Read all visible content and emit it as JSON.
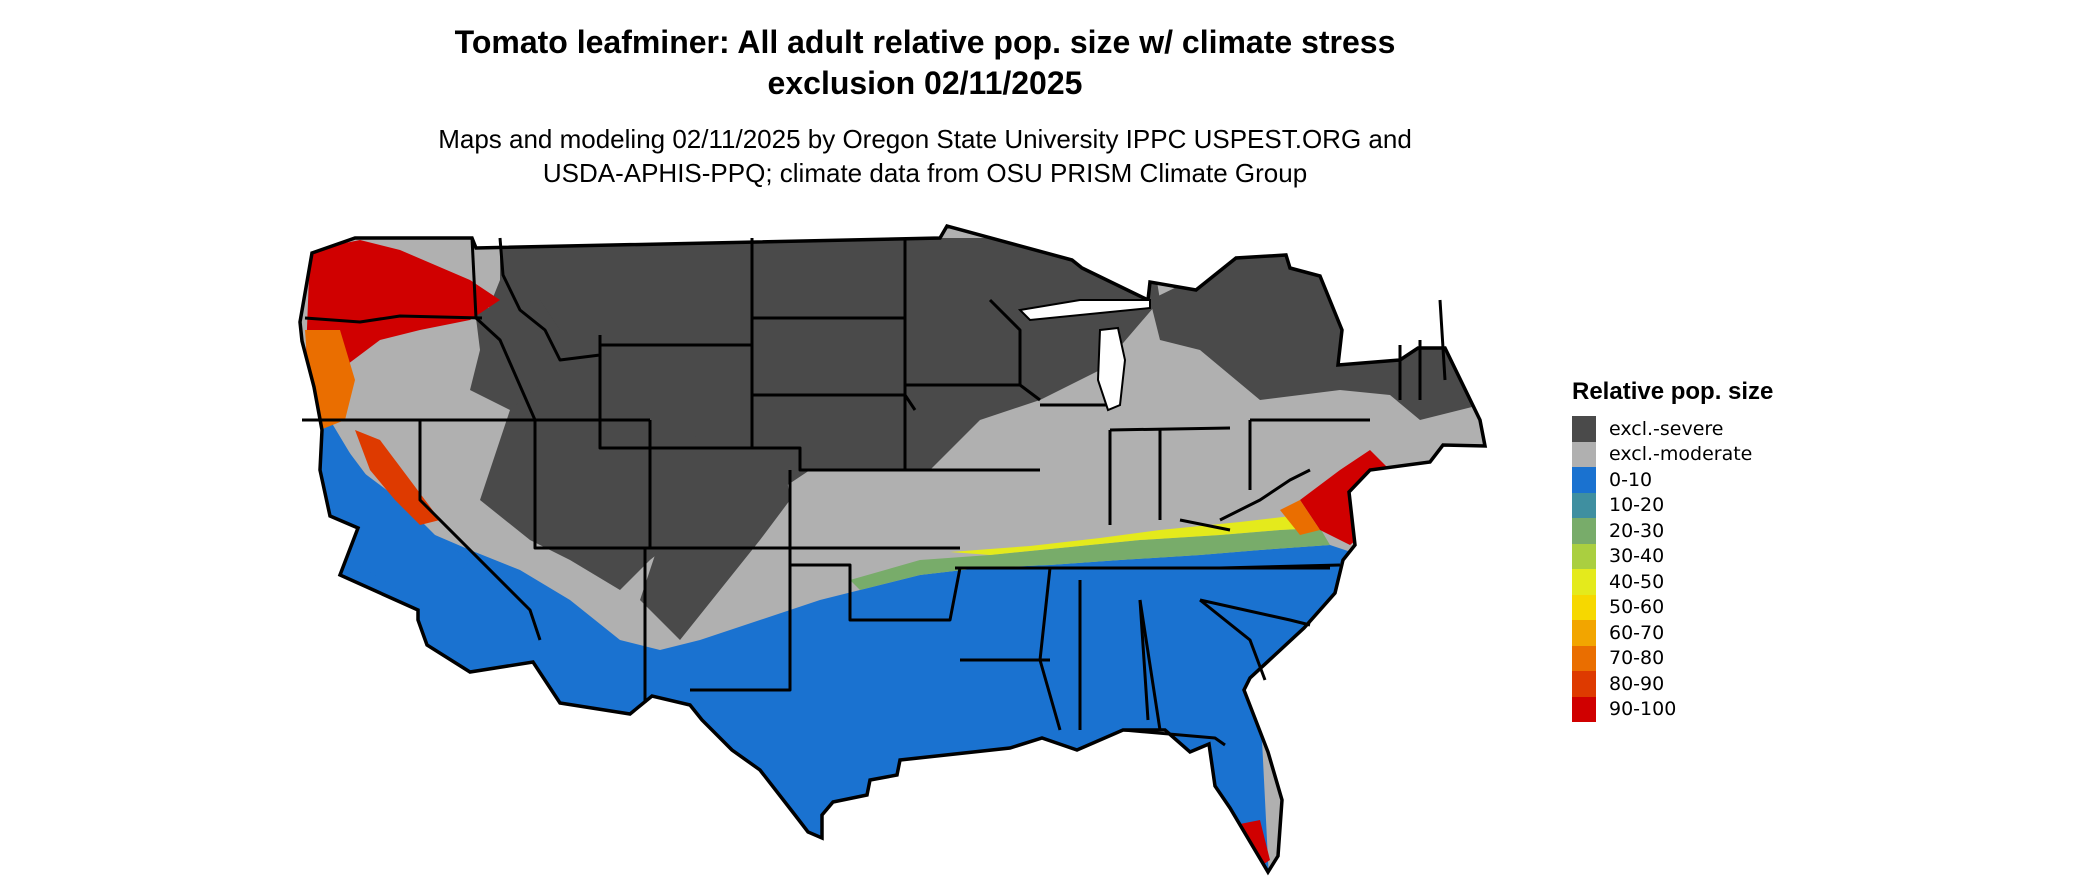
{
  "title_line1": "Tomato leafminer: All adult relative pop. size w/ climate stress",
  "title_line2": "exclusion 02/11/2025",
  "subtitle_line1": "Maps and modeling 02/11/2025 by Oregon State University IPPC USPEST.ORG and",
  "subtitle_line2": "USDA-APHIS-PPQ; climate data from OSU PRISM Climate Group",
  "legend": {
    "title": "Relative pop. size",
    "items": [
      {
        "label": "excl.-severe",
        "color": "#4a4a4a"
      },
      {
        "label": "excl.-moderate",
        "color": "#b0b0b0"
      },
      {
        "label": "0-10",
        "color": "#1a72d0"
      },
      {
        "label": "10-20",
        "color": "#3f8fa0"
      },
      {
        "label": "20-30",
        "color": "#78ac6a"
      },
      {
        "label": "30-40",
        "color": "#aacf40"
      },
      {
        "label": "40-50",
        "color": "#e4ea1c"
      },
      {
        "label": "50-60",
        "color": "#f6d800"
      },
      {
        "label": "60-70",
        "color": "#f2a500"
      },
      {
        "label": "70-80",
        "color": "#ea6e00"
      },
      {
        "label": "80-90",
        "color": "#de3a00"
      },
      {
        "label": "90-100",
        "color": "#d00000"
      }
    ]
  }
}
